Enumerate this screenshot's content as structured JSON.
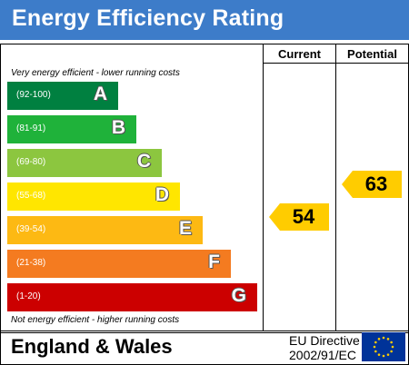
{
  "header": {
    "title": "Energy Efficiency Rating"
  },
  "columns": {
    "current": "Current",
    "potential": "Potential"
  },
  "captions": {
    "top": "Very energy efficient - lower running costs",
    "bottom": "Not energy efficient - higher running costs"
  },
  "chart_data": {
    "type": "bar",
    "title": "Energy Efficiency Rating",
    "bands": [
      {
        "letter": "A",
        "range": "(92-100)",
        "color": "#008040"
      },
      {
        "letter": "B",
        "range": "(81-91)",
        "color": "#1fb23a"
      },
      {
        "letter": "C",
        "range": "(69-80)",
        "color": "#8cc63f"
      },
      {
        "letter": "D",
        "range": "(55-68)",
        "color": "#ffe600"
      },
      {
        "letter": "E",
        "range": "(39-54)",
        "color": "#fdb913"
      },
      {
        "letter": "F",
        "range": "(21-38)",
        "color": "#f47b20"
      },
      {
        "letter": "G",
        "range": "(1-20)",
        "color": "#cc0000"
      }
    ],
    "current": {
      "value": 54,
      "band": "E"
    },
    "potential": {
      "value": 63,
      "band": "D"
    }
  },
  "footer": {
    "region": "England & Wales",
    "directive_line1": "EU Directive",
    "directive_line2": "2002/91/EC",
    "flag_color": "#003399",
    "star_color": "#ffcc00"
  }
}
